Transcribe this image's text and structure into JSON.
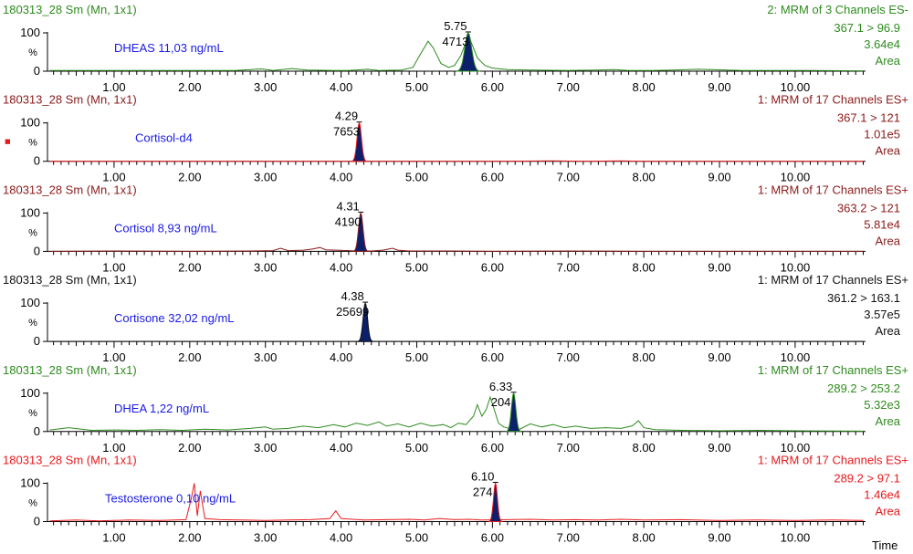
{
  "chart_data": {
    "type": "line",
    "x_axis_label": "Time",
    "x_ticks": [
      "1.00",
      "2.00",
      "3.00",
      "4.00",
      "5.00",
      "6.00",
      "7.00",
      "8.00",
      "9.00",
      "10.00"
    ],
    "x_range": [
      0.12,
      10.93
    ],
    "y_range_percent": [
      0,
      100
    ],
    "y_tick_labels": [
      "100",
      "0"
    ],
    "y_axis_symbol": "%",
    "panels": [
      {
        "sample": "180313_28 Sm (Mn, 1x1)",
        "function": "2: MRM of 3 Channels ES-",
        "transition": "367.1 > 96.9",
        "intensity": "3.64e4",
        "mode": "Area",
        "compound": "DHEAS 11,03 ng/mL",
        "color": "#2e8b1e",
        "label_color": "#2e8b1e",
        "peak_time": "5.75",
        "peak_area": "4713",
        "peak_rt": 5.68,
        "peak_width": 0.07,
        "trace_points": [
          [
            0.15,
            2
          ],
          [
            1.0,
            2
          ],
          [
            1.8,
            2
          ],
          [
            2.2,
            2
          ],
          [
            2.6,
            2
          ],
          [
            2.95,
            6
          ],
          [
            3.1,
            2
          ],
          [
            3.35,
            7
          ],
          [
            3.55,
            3
          ],
          [
            3.9,
            2
          ],
          [
            4.1,
            2
          ],
          [
            4.35,
            5
          ],
          [
            4.5,
            2
          ],
          [
            4.8,
            3
          ],
          [
            4.95,
            10
          ],
          [
            5.05,
            45
          ],
          [
            5.15,
            78
          ],
          [
            5.22,
            60
          ],
          [
            5.32,
            20
          ],
          [
            5.42,
            10
          ],
          [
            5.5,
            15
          ],
          [
            5.58,
            40
          ],
          [
            5.64,
            70
          ],
          [
            5.68,
            98
          ],
          [
            5.72,
            75
          ],
          [
            5.8,
            35
          ],
          [
            5.9,
            15
          ],
          [
            6.0,
            8
          ],
          [
            6.2,
            4
          ],
          [
            6.5,
            3
          ],
          [
            7.0,
            2
          ],
          [
            7.4,
            3
          ],
          [
            7.6,
            4
          ],
          [
            7.8,
            2
          ],
          [
            8.1,
            2
          ],
          [
            8.4,
            3
          ],
          [
            8.7,
            5
          ],
          [
            8.9,
            4
          ],
          [
            9.3,
            2
          ],
          [
            10.0,
            2
          ],
          [
            10.9,
            1
          ]
        ]
      },
      {
        "sample": "180313_28 Sm (Mn, 1x1)",
        "function": "1: MRM of 17 Channels ES+",
        "transition": "367.1 > 121",
        "intensity": "1.01e5",
        "mode": "Area",
        "compound": "Cortisol-d4",
        "color": "#e8191c",
        "label_color": "#8b1a1a",
        "marker": "■",
        "peak_time": "4.29",
        "peak_area": "7653",
        "peak_rt": 4.24,
        "peak_width": 0.045,
        "trace_points": [
          [
            0.15,
            0
          ],
          [
            1.0,
            0
          ],
          [
            2.0,
            0
          ],
          [
            3.0,
            0
          ],
          [
            4.0,
            0
          ],
          [
            4.15,
            0
          ],
          [
            4.5,
            0
          ],
          [
            5.0,
            0
          ],
          [
            6.0,
            0
          ],
          [
            6.8,
            1
          ],
          [
            7.2,
            0
          ],
          [
            7.7,
            1
          ],
          [
            8.0,
            0
          ],
          [
            9.0,
            0
          ],
          [
            10.9,
            0
          ]
        ]
      },
      {
        "sample": "180313_28 Sm (Mn, 1x1)",
        "function": "1: MRM of 17 Channels ES+",
        "transition": "363.2 > 121",
        "intensity": "5.81e4",
        "mode": "Area",
        "compound": "Cortisol 8,93 ng/mL",
        "color": "#8b1a1a",
        "label_color": "#8b1a1a",
        "peak_time": "4.31",
        "peak_area": "4190",
        "peak_rt": 4.26,
        "peak_width": 0.045,
        "trace_points": [
          [
            0.15,
            0
          ],
          [
            1.0,
            1
          ],
          [
            2.0,
            0
          ],
          [
            2.8,
            1
          ],
          [
            3.1,
            2
          ],
          [
            3.2,
            8
          ],
          [
            3.3,
            2
          ],
          [
            3.5,
            3
          ],
          [
            3.62,
            6
          ],
          [
            3.72,
            10
          ],
          [
            3.8,
            4
          ],
          [
            3.95,
            3
          ],
          [
            4.1,
            2
          ],
          [
            4.2,
            1
          ],
          [
            4.4,
            1
          ],
          [
            4.55,
            3
          ],
          [
            4.68,
            8
          ],
          [
            4.75,
            3
          ],
          [
            4.9,
            1
          ],
          [
            5.5,
            1
          ],
          [
            6.0,
            0
          ],
          [
            7.0,
            1
          ],
          [
            8.0,
            0
          ],
          [
            9.0,
            0
          ],
          [
            10.9,
            0
          ]
        ]
      },
      {
        "sample": "180313_28 Sm (Mn, 1x1)",
        "function": "1: MRM of 17 Channels ES+",
        "transition": "361.2 > 163.1",
        "intensity": "3.57e5",
        "mode": "Area",
        "compound": "Cortisone 32,02 ng/mL",
        "color": "#111111",
        "label_color": "#111111",
        "peak_time": "4.38",
        "peak_area": "25699",
        "peak_rt": 4.32,
        "peak_width": 0.045,
        "trace_points": [
          [
            0.15,
            0
          ],
          [
            2.0,
            0
          ],
          [
            4.0,
            0
          ],
          [
            4.2,
            0
          ],
          [
            4.5,
            0
          ],
          [
            6.0,
            0
          ],
          [
            8.0,
            0
          ],
          [
            10.9,
            0
          ]
        ]
      },
      {
        "sample": "180313_28 Sm (Mn, 1x1)",
        "function": "1: MRM of 17 Channels ES+",
        "transition": "289.2 > 253.2",
        "intensity": "5.32e3",
        "mode": "Area",
        "compound": "DHEA 1,22 ng/mL",
        "color": "#2e8b1e",
        "label_color": "#2e8b1e",
        "peak_time": "6.33",
        "peak_area": "204",
        "peak_rt": 6.28,
        "peak_width": 0.045,
        "trace_points": [
          [
            0.15,
            4
          ],
          [
            0.4,
            10
          ],
          [
            0.7,
            3
          ],
          [
            1.0,
            4
          ],
          [
            1.3,
            3
          ],
          [
            1.6,
            5
          ],
          [
            1.9,
            3
          ],
          [
            2.2,
            6
          ],
          [
            2.5,
            4
          ],
          [
            2.8,
            8
          ],
          [
            3.0,
            12
          ],
          [
            3.1,
            6
          ],
          [
            3.3,
            8
          ],
          [
            3.5,
            14
          ],
          [
            3.7,
            10
          ],
          [
            3.9,
            18
          ],
          [
            4.05,
            12
          ],
          [
            4.2,
            22
          ],
          [
            4.35,
            16
          ],
          [
            4.5,
            25
          ],
          [
            4.6,
            14
          ],
          [
            4.75,
            20
          ],
          [
            4.9,
            12
          ],
          [
            5.05,
            22
          ],
          [
            5.2,
            14
          ],
          [
            5.35,
            18
          ],
          [
            5.45,
            10
          ],
          [
            5.55,
            22
          ],
          [
            5.65,
            18
          ],
          [
            5.75,
            40
          ],
          [
            5.8,
            70
          ],
          [
            5.86,
            40
          ],
          [
            5.92,
            58
          ],
          [
            5.97,
            90
          ],
          [
            6.02,
            60
          ],
          [
            6.08,
            22
          ],
          [
            6.15,
            12
          ],
          [
            6.22,
            8
          ],
          [
            6.35,
            5
          ],
          [
            6.5,
            20
          ],
          [
            6.65,
            12
          ],
          [
            6.8,
            18
          ],
          [
            6.95,
            10
          ],
          [
            7.1,
            14
          ],
          [
            7.3,
            8
          ],
          [
            7.5,
            10
          ],
          [
            7.7,
            8
          ],
          [
            7.85,
            15
          ],
          [
            7.93,
            28
          ],
          [
            8.0,
            10
          ],
          [
            8.15,
            5
          ],
          [
            8.5,
            3
          ],
          [
            9.0,
            2
          ],
          [
            9.5,
            3
          ],
          [
            10.0,
            2
          ],
          [
            10.9,
            1
          ]
        ]
      },
      {
        "sample": "180313_28 Sm (Mn, 1x1)",
        "function": "1: MRM of 17 Channels ES+",
        "transition": "289.2 > 97.1",
        "intensity": "1.46e4",
        "mode": "Area",
        "compound": "Testosterone 0,10 ng/mL",
        "color": "#e8191c",
        "label_color": "#e8191c",
        "peak_time": "6.10",
        "peak_area": "274",
        "peak_rt": 6.04,
        "peak_width": 0.04,
        "trace_points": [
          [
            0.15,
            2
          ],
          [
            0.5,
            4
          ],
          [
            0.8,
            2
          ],
          [
            1.2,
            4
          ],
          [
            1.6,
            3
          ],
          [
            1.95,
            5
          ],
          [
            2.02,
            60
          ],
          [
            2.06,
            100
          ],
          [
            2.1,
            15
          ],
          [
            2.14,
            80
          ],
          [
            2.2,
            8
          ],
          [
            2.4,
            5
          ],
          [
            2.7,
            4
          ],
          [
            3.0,
            3
          ],
          [
            3.3,
            4
          ],
          [
            3.6,
            5
          ],
          [
            3.85,
            8
          ],
          [
            3.93,
            28
          ],
          [
            4.0,
            8
          ],
          [
            4.3,
            4
          ],
          [
            4.6,
            5
          ],
          [
            4.9,
            6
          ],
          [
            5.1,
            4
          ],
          [
            5.3,
            8
          ],
          [
            5.5,
            5
          ],
          [
            5.7,
            6
          ],
          [
            5.85,
            4
          ],
          [
            6.2,
            5
          ],
          [
            6.5,
            6
          ],
          [
            6.8,
            4
          ],
          [
            7.1,
            5
          ],
          [
            7.4,
            4
          ],
          [
            7.7,
            6
          ],
          [
            8.0,
            4
          ],
          [
            8.5,
            5
          ],
          [
            9.0,
            3
          ],
          [
            9.5,
            4
          ],
          [
            10.0,
            3
          ],
          [
            10.5,
            4
          ],
          [
            10.9,
            3
          ]
        ]
      }
    ]
  }
}
